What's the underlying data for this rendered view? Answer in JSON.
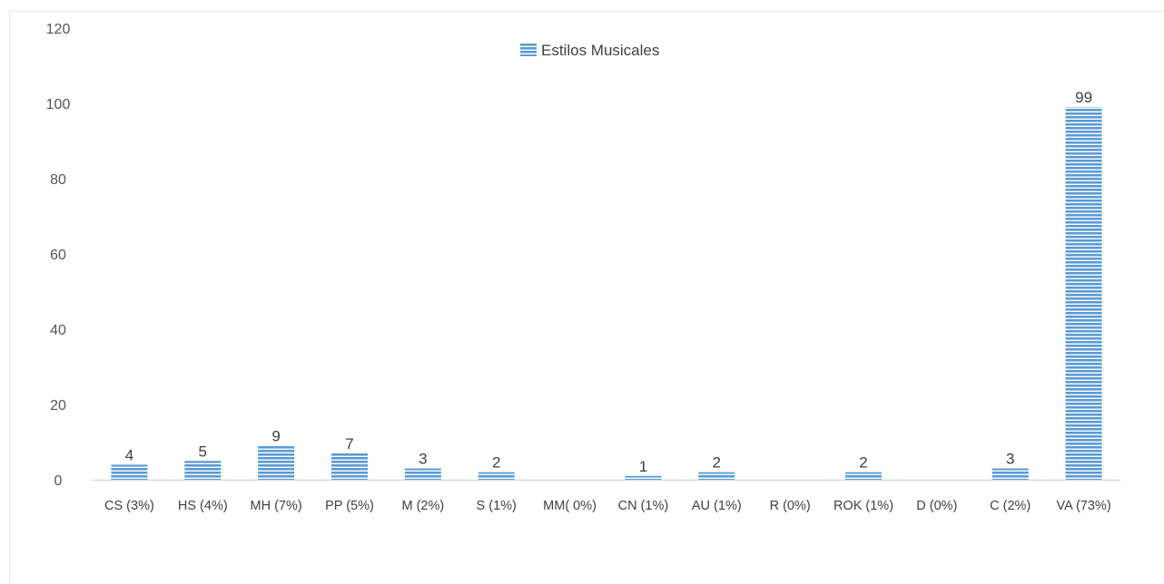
{
  "chart_data": {
    "type": "bar",
    "categories": [
      "CS (3%)",
      "HS (4%)",
      "MH (7%)",
      "PP (5%)",
      "M (2%)",
      "S (1%)",
      "MM( 0%)",
      "CN (1%)",
      "AU (1%)",
      "R  (0%)",
      "ROK (1%)",
      "D (0%)",
      "C (2%)",
      "VA (73%)"
    ],
    "series": [
      {
        "name": "Estilos Musicales",
        "values": [
          4,
          5,
          9,
          7,
          3,
          2,
          0,
          1,
          2,
          0,
          2,
          0,
          3,
          99
        ],
        "data_labels": [
          "4",
          "5",
          "9",
          "7",
          "3",
          "2",
          "",
          "1",
          "2",
          "",
          "2",
          "",
          "3",
          "99"
        ]
      }
    ],
    "ylim": [
      0,
      120
    ],
    "yticks": [
      "0",
      "20",
      "40",
      "60",
      "80",
      "100",
      "120"
    ],
    "ytick_values": [
      0,
      20,
      40,
      60,
      80,
      100,
      120
    ],
    "legend_position": "top-center",
    "grid": false,
    "colors": {
      "bar_stripe": "#5b9bd5",
      "bar_gap": "#ffffff",
      "axis_line": "#d9d9d9"
    }
  }
}
